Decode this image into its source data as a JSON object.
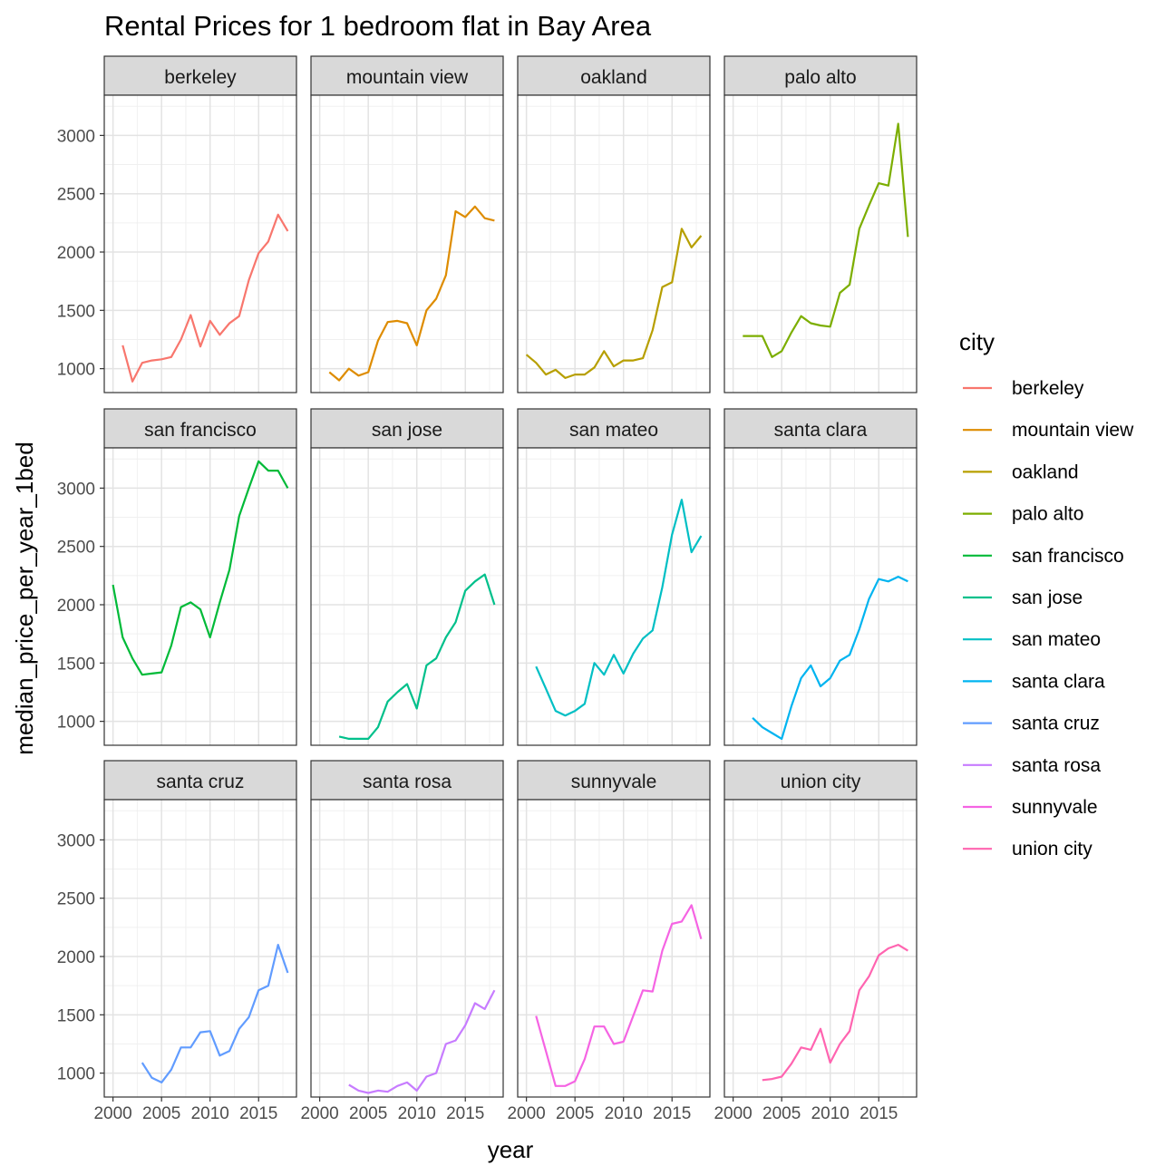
{
  "chart_data": {
    "type": "line",
    "title": "Rental Prices for 1 bedroom flat in Bay Area",
    "xlabel": "year",
    "ylabel": "median_price_per_year_1bed",
    "xlim": [
      1999.1,
      2018.9
    ],
    "ylim": [
      795,
      3345
    ],
    "x_ticks": [
      2000,
      2005,
      2010,
      2015
    ],
    "x_tick_labels": [
      "2000",
      "2005",
      "2010",
      "2015"
    ],
    "y_ticks": [
      1000,
      1500,
      2000,
      2500,
      3000
    ],
    "y_tick_labels": [
      "1000",
      "1500",
      "2000",
      "2500",
      "3000"
    ],
    "facet_layout": {
      "rows": 3,
      "cols": 4
    },
    "grid": true,
    "legend": {
      "title": "city",
      "position": "right"
    },
    "series": [
      {
        "name": "berkeley",
        "color": "#F8766D",
        "x": [
          2001,
          2002,
          2003,
          2004,
          2005,
          2006,
          2007,
          2008,
          2009,
          2010,
          2011,
          2012,
          2013,
          2014,
          2015,
          2016,
          2017,
          2018
        ],
        "y": [
          1200,
          890,
          1050,
          1070,
          1080,
          1100,
          1250,
          1460,
          1190,
          1410,
          1290,
          1390,
          1450,
          1760,
          1990,
          2090,
          2320,
          2180
        ]
      },
      {
        "name": "mountain view",
        "color": "#DE8C00",
        "x": [
          2001,
          2002,
          2003,
          2004,
          2005,
          2006,
          2007,
          2008,
          2009,
          2010,
          2011,
          2012,
          2013,
          2014,
          2015,
          2016,
          2017,
          2018
        ],
        "y": [
          970,
          900,
          1000,
          940,
          970,
          1240,
          1400,
          1410,
          1390,
          1200,
          1500,
          1600,
          1800,
          2350,
          2300,
          2390,
          2290,
          2270
        ]
      },
      {
        "name": "oakland",
        "color": "#B79F00",
        "x": [
          2000,
          2001,
          2002,
          2003,
          2004,
          2005,
          2006,
          2007,
          2008,
          2009,
          2010,
          2011,
          2012,
          2013,
          2014,
          2015,
          2016,
          2017,
          2018
        ],
        "y": [
          1120,
          1050,
          950,
          990,
          920,
          950,
          950,
          1010,
          1150,
          1020,
          1070,
          1070,
          1090,
          1330,
          1700,
          1740,
          2200,
          2040,
          2140
        ]
      },
      {
        "name": "palo alto",
        "color": "#7CAE00",
        "x": [
          2001,
          2002,
          2003,
          2004,
          2005,
          2006,
          2007,
          2008,
          2009,
          2010,
          2011,
          2012,
          2013,
          2014,
          2015,
          2016,
          2017,
          2018
        ],
        "y": [
          1280,
          1280,
          1280,
          1100,
          1150,
          1310,
          1450,
          1390,
          1370,
          1360,
          1650,
          1720,
          2200,
          2400,
          2590,
          2570,
          3100,
          2130
        ]
      },
      {
        "name": "san francisco",
        "color": "#00BA38",
        "x": [
          2000,
          2001,
          2002,
          2003,
          2004,
          2005,
          2006,
          2007,
          2008,
          2009,
          2010,
          2011,
          2012,
          2013,
          2014,
          2015,
          2016,
          2017,
          2018
        ],
        "y": [
          2170,
          1720,
          1540,
          1400,
          1410,
          1420,
          1650,
          1980,
          2020,
          1960,
          1720,
          2020,
          2300,
          2760,
          3000,
          3230,
          3150,
          3150,
          3000
        ]
      },
      {
        "name": "san jose",
        "color": "#00C08B",
        "x": [
          2002,
          2003,
          2004,
          2005,
          2006,
          2007,
          2008,
          2009,
          2010,
          2011,
          2012,
          2013,
          2014,
          2015,
          2016,
          2017,
          2018
        ],
        "y": [
          870,
          850,
          850,
          850,
          950,
          1170,
          1250,
          1320,
          1110,
          1480,
          1540,
          1720,
          1850,
          2120,
          2200,
          2260,
          2000
        ]
      },
      {
        "name": "san mateo",
        "color": "#00BFC4",
        "x": [
          2001,
          2002,
          2003,
          2004,
          2005,
          2006,
          2007,
          2008,
          2009,
          2010,
          2011,
          2012,
          2013,
          2014,
          2015,
          2016,
          2017,
          2018
        ],
        "y": [
          1470,
          1280,
          1090,
          1050,
          1090,
          1150,
          1500,
          1400,
          1570,
          1410,
          1580,
          1710,
          1780,
          2150,
          2600,
          2900,
          2450,
          2590
        ]
      },
      {
        "name": "santa clara",
        "color": "#00B4F0",
        "x": [
          2002,
          2003,
          2004,
          2005,
          2006,
          2007,
          2008,
          2009,
          2010,
          2011,
          2012,
          2013,
          2014,
          2015,
          2016,
          2017,
          2018
        ],
        "y": [
          1030,
          950,
          900,
          850,
          1130,
          1370,
          1480,
          1300,
          1370,
          1520,
          1570,
          1790,
          2050,
          2220,
          2200,
          2240,
          2200
        ]
      },
      {
        "name": "santa cruz",
        "color": "#619CFF",
        "x": [
          2003,
          2004,
          2005,
          2006,
          2007,
          2008,
          2009,
          2010,
          2011,
          2012,
          2013,
          2014,
          2015,
          2016,
          2017,
          2018
        ],
        "y": [
          1090,
          960,
          920,
          1030,
          1220,
          1220,
          1350,
          1360,
          1150,
          1190,
          1380,
          1480,
          1710,
          1750,
          2100,
          1860
        ]
      },
      {
        "name": "santa rosa",
        "color": "#C77CFF",
        "x": [
          2003,
          2004,
          2005,
          2006,
          2007,
          2008,
          2009,
          2010,
          2011,
          2012,
          2013,
          2014,
          2015,
          2016,
          2017,
          2018
        ],
        "y": [
          900,
          850,
          830,
          850,
          840,
          890,
          920,
          850,
          970,
          1000,
          1250,
          1280,
          1410,
          1600,
          1550,
          1710
        ]
      },
      {
        "name": "sunnyvale",
        "color": "#F564E3",
        "x": [
          2001,
          2002,
          2003,
          2004,
          2005,
          2006,
          2007,
          2008,
          2009,
          2010,
          2011,
          2012,
          2013,
          2014,
          2015,
          2016,
          2017,
          2018
        ],
        "y": [
          1490,
          1190,
          890,
          890,
          930,
          1120,
          1400,
          1400,
          1250,
          1270,
          1490,
          1710,
          1700,
          2050,
          2280,
          2300,
          2440,
          2150
        ]
      },
      {
        "name": "union city",
        "color": "#FF64B0",
        "x": [
          2003,
          2004,
          2005,
          2006,
          2007,
          2008,
          2009,
          2010,
          2011,
          2012,
          2013,
          2014,
          2015,
          2016,
          2017,
          2018
        ],
        "y": [
          940,
          950,
          970,
          1080,
          1220,
          1200,
          1380,
          1090,
          1250,
          1360,
          1710,
          1830,
          2010,
          2070,
          2100,
          2050
        ]
      }
    ]
  }
}
